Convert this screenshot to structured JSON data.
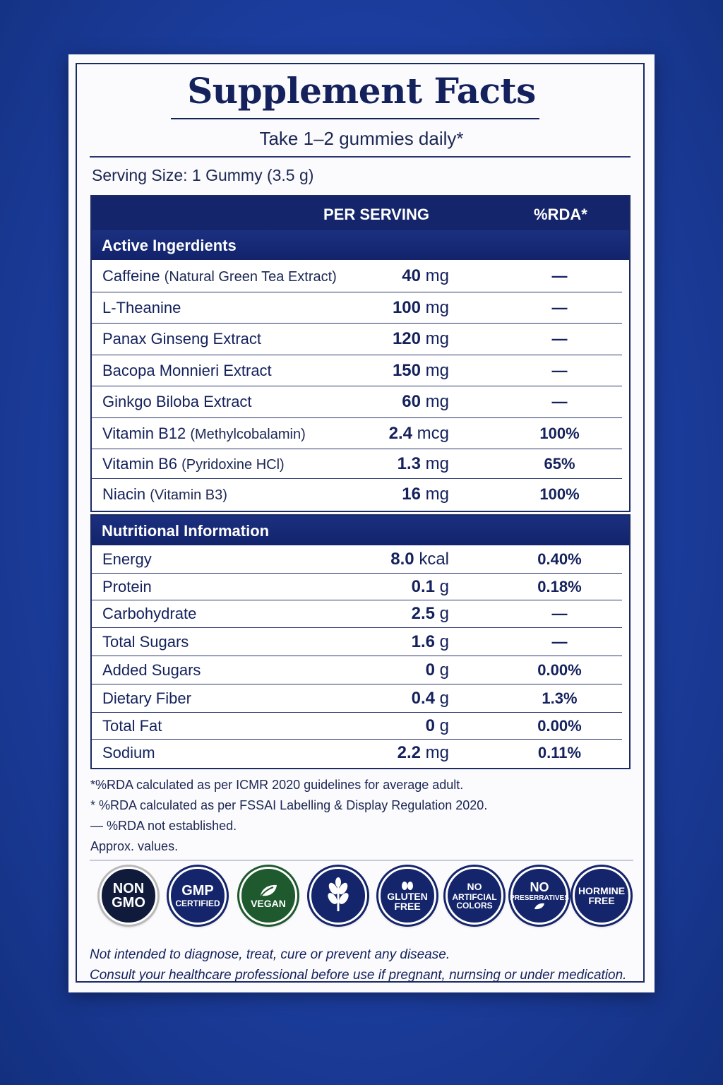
{
  "title": "Supplement Facts",
  "subtitle": "Take 1–2 gummies daily*",
  "serving_size": "Serving Size: 1 Gummy (3.5 g)",
  "table_header": {
    "per_serving": "PER SERVING",
    "rda": "%RDA*"
  },
  "active": {
    "heading": "Active Ingerdients",
    "rows": [
      {
        "name": "Caffeine",
        "paren": "(Natural Green Tea Extract)",
        "amount": "40",
        "unit": "mg",
        "rda": "—"
      },
      {
        "name": "L-Theanine",
        "paren": "",
        "amount": "100",
        "unit": "mg",
        "rda": "—"
      },
      {
        "name": "Panax Ginseng Extract",
        "paren": "",
        "amount": "120",
        "unit": "mg",
        "rda": "—"
      },
      {
        "name": "Bacopa Monnieri Extract",
        "paren": "",
        "amount": "150",
        "unit": "mg",
        "rda": "—"
      },
      {
        "name": "Ginkgo Biloba Extract",
        "paren": "",
        "amount": "60",
        "unit": "mg",
        "rda": "—"
      },
      {
        "name": "Vitamin B12",
        "paren": "(Methylcobalamin)",
        "amount": "2.4",
        "unit": "mcg",
        "rda": "100%"
      },
      {
        "name": "Vitamin B6",
        "paren": "(Pyridoxine HCl)",
        "amount": "1.3",
        "unit": "mg",
        "rda": "65%"
      },
      {
        "name": "Niacin",
        "paren": "(Vitamin B3)",
        "amount": "16",
        "unit": "mg",
        "rda": "100%"
      }
    ]
  },
  "nutrition": {
    "heading": "Nutritional Information",
    "rows": [
      {
        "name": "Energy",
        "amount": "8.0",
        "unit": "kcal",
        "rda": "0.40%"
      },
      {
        "name": "Protein",
        "amount": "0.1",
        "unit": "g",
        "rda": "0.18%"
      },
      {
        "name": "Carbohydrate",
        "amount": "2.5",
        "unit": "g",
        "rda": "—"
      },
      {
        "name": "Total Sugars",
        "amount": "1.6",
        "unit": "g",
        "rda": "—"
      },
      {
        "name": "Added Sugars",
        "amount": "0",
        "unit": "g",
        "rda": "0.00%"
      },
      {
        "name": "Dietary Fiber",
        "amount": "0.4",
        "unit": "g",
        "rda": "1.3%"
      },
      {
        "name": "Total Fat",
        "amount": "0",
        "unit": "g",
        "rda": "0.00%"
      },
      {
        "name": "Sodium",
        "amount": "2.2",
        "unit": "mg",
        "rda": "0.11%"
      }
    ]
  },
  "notes": [
    "*%RDA calculated as per ICMR 2020 guidelines for average adult.",
    "* %RDA calculated as per FSSAI Labelling & Display Regulation 2020.",
    "— %RDA not established.",
    " Approx. values."
  ],
  "badges": [
    {
      "line1": "NON",
      "line2": "GMO",
      "icon": "non-gmo-icon"
    },
    {
      "line1": "GMP",
      "line2": "CERTIFIED",
      "icon": "gmp-certified-icon"
    },
    {
      "line1": "VEGAN",
      "line2": "",
      "icon": "vegan-leaf-icon"
    },
    {
      "line1": "",
      "line2": "",
      "icon": "wheat-icon"
    },
    {
      "line1": "GLUTEN",
      "line2": "FREE",
      "icon": "gluten-free-icon"
    },
    {
      "line1": "NO",
      "line2": "ARTIFCIAL COLORS",
      "icon": "no-artificial-colors-icon"
    },
    {
      "line1": "NO",
      "line2": "PRESERRATIVES",
      "icon": "no-preservatives-icon"
    },
    {
      "line1": "HORMINE",
      "line2": "FREE",
      "icon": "hormone-free-icon"
    }
  ],
  "disclaimer": [
    "Not intended to diagnose, treat, cure or prevent any disease.",
    "Consult your healthcare professional before use if pregnant, nurnsing or under medication."
  ],
  "colors": {
    "background": "#1c3d9e",
    "navy": "#15256b",
    "green": "#1e5a2d"
  }
}
